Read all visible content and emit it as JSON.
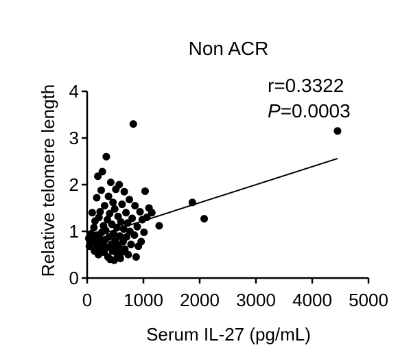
{
  "chart_data": {
    "type": "scatter",
    "title": "Non ACR",
    "xlabel": "Serum IL-27 (pg/mL)",
    "ylabel": "Relative telomere length",
    "xlim": [
      0,
      5000
    ],
    "ylim": [
      0,
      4
    ],
    "xticks": [
      "0",
      "1000",
      "2000",
      "3000",
      "4000",
      "5000"
    ],
    "yticks": [
      "0",
      "1",
      "2",
      "3",
      "4"
    ],
    "grid": false,
    "annotations": {
      "r_text": "r=0.3322",
      "p_label": "P",
      "p_value": "=0.0003"
    },
    "trendline": {
      "x": [
        100,
        4450
      ],
      "y": [
        0.88,
        2.56
      ]
    },
    "points": [
      {
        "x": 30,
        "y": 0.85
      },
      {
        "x": 40,
        "y": 0.68
      },
      {
        "x": 60,
        "y": 0.75
      },
      {
        "x": 70,
        "y": 0.95
      },
      {
        "x": 90,
        "y": 1.4
      },
      {
        "x": 110,
        "y": 0.8
      },
      {
        "x": 120,
        "y": 1.08
      },
      {
        "x": 130,
        "y": 0.58
      },
      {
        "x": 140,
        "y": 1.22
      },
      {
        "x": 160,
        "y": 0.72
      },
      {
        "x": 170,
        "y": 1.72
      },
      {
        "x": 180,
        "y": 0.92
      },
      {
        "x": 190,
        "y": 2.18
      },
      {
        "x": 200,
        "y": 0.5
      },
      {
        "x": 210,
        "y": 1.3
      },
      {
        "x": 220,
        "y": 0.85
      },
      {
        "x": 230,
        "y": 1.42
      },
      {
        "x": 240,
        "y": 0.62
      },
      {
        "x": 250,
        "y": 1.88
      },
      {
        "x": 260,
        "y": 0.98
      },
      {
        "x": 270,
        "y": 2.28
      },
      {
        "x": 280,
        "y": 0.74
      },
      {
        "x": 290,
        "y": 1.12
      },
      {
        "x": 300,
        "y": 0.55
      },
      {
        "x": 310,
        "y": 1.55
      },
      {
        "x": 320,
        "y": 0.82
      },
      {
        "x": 330,
        "y": 1.02
      },
      {
        "x": 340,
        "y": 2.6
      },
      {
        "x": 350,
        "y": 0.66
      },
      {
        "x": 360,
        "y": 1.25
      },
      {
        "x": 370,
        "y": 0.45
      },
      {
        "x": 380,
        "y": 1.75
      },
      {
        "x": 390,
        "y": 0.88
      },
      {
        "x": 400,
        "y": 1.38
      },
      {
        "x": 410,
        "y": 0.4
      },
      {
        "x": 420,
        "y": 2.05
      },
      {
        "x": 430,
        "y": 0.72
      },
      {
        "x": 440,
        "y": 1.15
      },
      {
        "x": 450,
        "y": 0.58
      },
      {
        "x": 460,
        "y": 1.62
      },
      {
        "x": 470,
        "y": 0.95
      },
      {
        "x": 480,
        "y": 0.38
      },
      {
        "x": 490,
        "y": 1.48
      },
      {
        "x": 500,
        "y": 0.8
      },
      {
        "x": 510,
        "y": 1.9
      },
      {
        "x": 520,
        "y": 0.62
      },
      {
        "x": 530,
        "y": 1.08
      },
      {
        "x": 540,
        "y": 0.48
      },
      {
        "x": 550,
        "y": 1.32
      },
      {
        "x": 560,
        "y": 0.7
      },
      {
        "x": 570,
        "y": 2.0
      },
      {
        "x": 580,
        "y": 0.9
      },
      {
        "x": 590,
        "y": 0.42
      },
      {
        "x": 600,
        "y": 1.2
      },
      {
        "x": 610,
        "y": 0.55
      },
      {
        "x": 620,
        "y": 1.58
      },
      {
        "x": 640,
        "y": 0.78
      },
      {
        "x": 650,
        "y": 1.05
      },
      {
        "x": 660,
        "y": 1.85
      },
      {
        "x": 670,
        "y": 0.62
      },
      {
        "x": 690,
        "y": 1.4
      },
      {
        "x": 700,
        "y": 0.88
      },
      {
        "x": 720,
        "y": 1.18
      },
      {
        "x": 730,
        "y": 0.5
      },
      {
        "x": 750,
        "y": 1.68
      },
      {
        "x": 760,
        "y": 1.0
      },
      {
        "x": 780,
        "y": 0.72
      },
      {
        "x": 800,
        "y": 1.28
      },
      {
        "x": 820,
        "y": 3.3
      },
      {
        "x": 840,
        "y": 0.92
      },
      {
        "x": 850,
        "y": 1.55
      },
      {
        "x": 870,
        "y": 0.45
      },
      {
        "x": 890,
        "y": 1.1
      },
      {
        "x": 910,
        "y": 0.68
      },
      {
        "x": 940,
        "y": 1.42
      },
      {
        "x": 960,
        "y": 0.78
      },
      {
        "x": 980,
        "y": 1.25
      },
      {
        "x": 1010,
        "y": 0.98
      },
      {
        "x": 1030,
        "y": 1.86
      },
      {
        "x": 1060,
        "y": 1.3
      },
      {
        "x": 1100,
        "y": 1.5
      },
      {
        "x": 1150,
        "y": 1.4
      },
      {
        "x": 1280,
        "y": 1.12
      },
      {
        "x": 1870,
        "y": 1.62
      },
      {
        "x": 2080,
        "y": 1.27
      },
      {
        "x": 4450,
        "y": 3.15
      }
    ]
  }
}
